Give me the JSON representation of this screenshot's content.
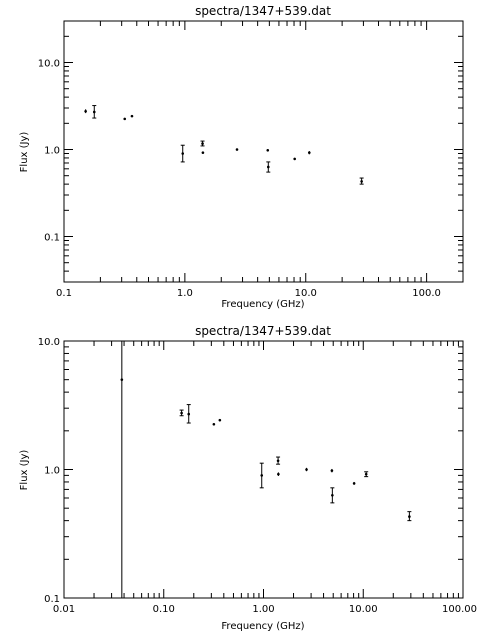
{
  "chart_data": [
    {
      "type": "scatter",
      "title": "spectra/1347+539.dat",
      "xlabel": "Frequency (GHz)",
      "ylabel": "Flux (Jy)",
      "xscale": "log",
      "yscale": "log",
      "xlim": [
        0.1,
        200
      ],
      "ylim": [
        0.03,
        30
      ],
      "grid": false,
      "xtick_values": [
        0.1,
        1.0,
        10.0,
        100.0
      ],
      "xtick_labels": [
        "0.1",
        "1.0",
        "10.0",
        "100.0"
      ],
      "ytick_values": [
        0.1,
        1.0,
        10.0
      ],
      "ytick_labels": [
        "0.1",
        "1.0",
        "10.0"
      ],
      "points": [
        {
          "x": 0.151,
          "y": 2.75,
          "lo": 2.62,
          "hi": 2.9
        },
        {
          "x": 0.178,
          "y": 2.7,
          "lo": 2.3,
          "hi": 3.2
        },
        {
          "x": 0.318,
          "y": 2.25,
          "lo": 2.2,
          "hi": 2.3
        },
        {
          "x": 0.365,
          "y": 2.42,
          "lo": 2.37,
          "hi": 2.47
        },
        {
          "x": 0.96,
          "y": 0.9,
          "lo": 0.72,
          "hi": 1.12
        },
        {
          "x": 1.4,
          "y": 1.17,
          "lo": 1.1,
          "hi": 1.25
        },
        {
          "x": 1.41,
          "y": 0.92,
          "lo": 0.89,
          "hi": 0.95
        },
        {
          "x": 2.7,
          "y": 1.0,
          "lo": 0.97,
          "hi": 1.03
        },
        {
          "x": 4.85,
          "y": 0.98,
          "lo": 0.95,
          "hi": 1.01
        },
        {
          "x": 4.9,
          "y": 0.63,
          "lo": 0.55,
          "hi": 0.72
        },
        {
          "x": 8.1,
          "y": 0.78,
          "lo": 0.76,
          "hi": 0.8
        },
        {
          "x": 10.7,
          "y": 0.92,
          "lo": 0.88,
          "hi": 0.96
        },
        {
          "x": 29.0,
          "y": 0.43,
          "lo": 0.4,
          "hi": 0.47
        }
      ]
    },
    {
      "type": "scatter",
      "title": "spectra/1347+539.dat",
      "xlabel": "Frequency (GHz)",
      "ylabel": "Flux (Jy)",
      "xscale": "log",
      "yscale": "log",
      "xlim": [
        0.01,
        100
      ],
      "ylim": [
        0.1,
        10
      ],
      "grid": false,
      "xtick_values": [
        0.01,
        0.1,
        1.0,
        10.0,
        100.0
      ],
      "xtick_labels": [
        "0.01",
        "0.10",
        "1.00",
        "10.00",
        "100.00"
      ],
      "ytick_values": [
        0.1,
        1.0,
        10.0
      ],
      "ytick_labels": [
        "0.1",
        "1.0",
        "10.0"
      ],
      "points": [
        {
          "x": 0.038,
          "y": 5.0,
          "lo": 0.1,
          "hi": 10
        },
        {
          "x": 0.151,
          "y": 2.75,
          "lo": 2.62,
          "hi": 2.9
        },
        {
          "x": 0.178,
          "y": 2.7,
          "lo": 2.3,
          "hi": 3.2
        },
        {
          "x": 0.318,
          "y": 2.25,
          "lo": 2.2,
          "hi": 2.3
        },
        {
          "x": 0.365,
          "y": 2.42,
          "lo": 2.37,
          "hi": 2.47
        },
        {
          "x": 0.96,
          "y": 0.9,
          "lo": 0.72,
          "hi": 1.12
        },
        {
          "x": 1.4,
          "y": 1.17,
          "lo": 1.1,
          "hi": 1.25
        },
        {
          "x": 1.41,
          "y": 0.92,
          "lo": 0.89,
          "hi": 0.95
        },
        {
          "x": 2.7,
          "y": 1.0,
          "lo": 0.97,
          "hi": 1.03
        },
        {
          "x": 4.85,
          "y": 0.98,
          "lo": 0.95,
          "hi": 1.01
        },
        {
          "x": 4.9,
          "y": 0.63,
          "lo": 0.55,
          "hi": 0.72
        },
        {
          "x": 8.1,
          "y": 0.78,
          "lo": 0.76,
          "hi": 0.8
        },
        {
          "x": 10.7,
          "y": 0.92,
          "lo": 0.88,
          "hi": 0.96
        },
        {
          "x": 29.0,
          "y": 0.43,
          "lo": 0.4,
          "hi": 0.47
        }
      ]
    }
  ]
}
